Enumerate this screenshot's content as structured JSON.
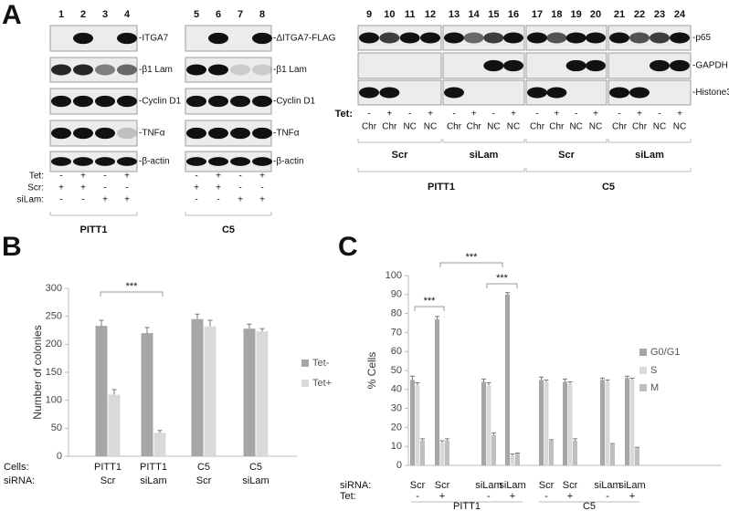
{
  "panel_a": {
    "label": "A",
    "left": {
      "lanes": [
        "1",
        "2",
        "3",
        "4",
        "5",
        "6",
        "7",
        "8"
      ],
      "blot1_labels": [
        "-ITGA7",
        "-β1 Lam",
        "-Cyclin D1",
        "-TNFα",
        "-β-actin"
      ],
      "blot2_labels": [
        "-ΔITGA7-FLAG",
        "-β1 Lam",
        "-Cyclin D1",
        "-TNFα",
        "-β-actin"
      ],
      "conditions": [
        {
          "name": "Tet:",
          "values": [
            "-",
            "+",
            "-",
            "+",
            "-",
            "+",
            "-",
            "+"
          ]
        },
        {
          "name": "Scr:",
          "values": [
            "+",
            "+",
            "-",
            "-",
            "+",
            "+",
            "-",
            "-"
          ]
        },
        {
          "name": "siLam:",
          "values": [
            "-",
            "-",
            "+",
            "+",
            "-",
            "-",
            "+",
            "+"
          ]
        }
      ],
      "groups": [
        "PITT1",
        "C5"
      ]
    },
    "right": {
      "lanes": [
        "9",
        "10",
        "11",
        "12",
        "13",
        "14",
        "15",
        "16",
        "17",
        "18",
        "19",
        "20",
        "21",
        "22",
        "23",
        "24"
      ],
      "labels": [
        "-p65",
        "-GAPDH",
        "-Histone3"
      ],
      "tet": {
        "name": "Tet:",
        "values": [
          "-",
          "+",
          "-",
          "+",
          "-",
          "+",
          "-",
          "+",
          "-",
          "+",
          "-",
          "+",
          "-",
          "+",
          "-",
          "+"
        ]
      },
      "fraction": [
        "Chr",
        "Chr",
        "NC",
        "NC",
        "Chr",
        "Chr",
        "NC",
        "NC",
        "Chr",
        "Chr",
        "NC",
        "NC",
        "Chr",
        "Chr",
        "NC",
        "NC"
      ],
      "sirna": [
        "Scr",
        "siLam",
        "Scr",
        "siLam"
      ],
      "groups": [
        "PITT1",
        "C5"
      ]
    }
  },
  "chart_data": [
    {
      "type": "bar",
      "label": "B",
      "y_label": "Number of colonies",
      "categories": [
        "PITT1",
        "PITT1",
        "C5",
        "C5"
      ],
      "sirna": [
        "Scr",
        "siLam",
        "Scr",
        "siLam"
      ],
      "row_labels": [
        "Cells:",
        "siRNA:"
      ],
      "series": [
        {
          "name": "Tet-",
          "color": "#a6a6a6",
          "values": [
            233,
            220,
            245,
            228
          ],
          "errors": [
            10,
            10,
            9,
            8
          ]
        },
        {
          "name": "Tet+",
          "color": "#d9d9d9",
          "values": [
            110,
            42,
            232,
            223
          ],
          "errors": [
            9,
            4,
            11,
            5
          ]
        }
      ],
      "ylim": [
        0,
        300
      ],
      "yticks": [
        0,
        50,
        100,
        150,
        200,
        250,
        300
      ],
      "legend": "right",
      "annotations": [
        "***"
      ]
    },
    {
      "type": "bar",
      "label": "C",
      "y_label": "% Cells",
      "categories": [
        "Scr",
        "Scr",
        "siLam",
        "siLam",
        "Scr",
        "Scr",
        "siLam",
        "siLam"
      ],
      "tet": [
        "-",
        "+",
        "-",
        "+",
        "-",
        "+",
        "-",
        "+"
      ],
      "groups": [
        "PITT1",
        "C5"
      ],
      "row_labels": [
        "siRNA:",
        "Tet:"
      ],
      "series": [
        {
          "name": "G0/G1",
          "color": "#a6a6a6",
          "values": [
            45,
            77,
            44,
            90,
            45,
            44,
            45,
            46
          ],
          "errors": [
            2,
            1.5,
            1.5,
            1,
            1.5,
            1.5,
            1,
            1
          ]
        },
        {
          "name": "S",
          "color": "#d9d9d9",
          "values": [
            42,
            12,
            42,
            5,
            44,
            43,
            44,
            45
          ],
          "errors": [
            1.5,
            1,
            1.5,
            1,
            1,
            1,
            1,
            1
          ]
        },
        {
          "name": "M",
          "color": "#bfbfbf",
          "values": [
            13,
            13,
            16,
            6,
            13,
            13,
            11,
            9
          ],
          "errors": [
            1,
            1,
            1,
            0.5,
            0.5,
            1,
            0.5,
            0.5
          ]
        }
      ],
      "ylim": [
        0,
        100
      ],
      "yticks": [
        0,
        10,
        20,
        30,
        40,
        50,
        60,
        70,
        80,
        90,
        100
      ],
      "legend": "right",
      "annotations": [
        "***",
        "***",
        "***"
      ]
    }
  ]
}
